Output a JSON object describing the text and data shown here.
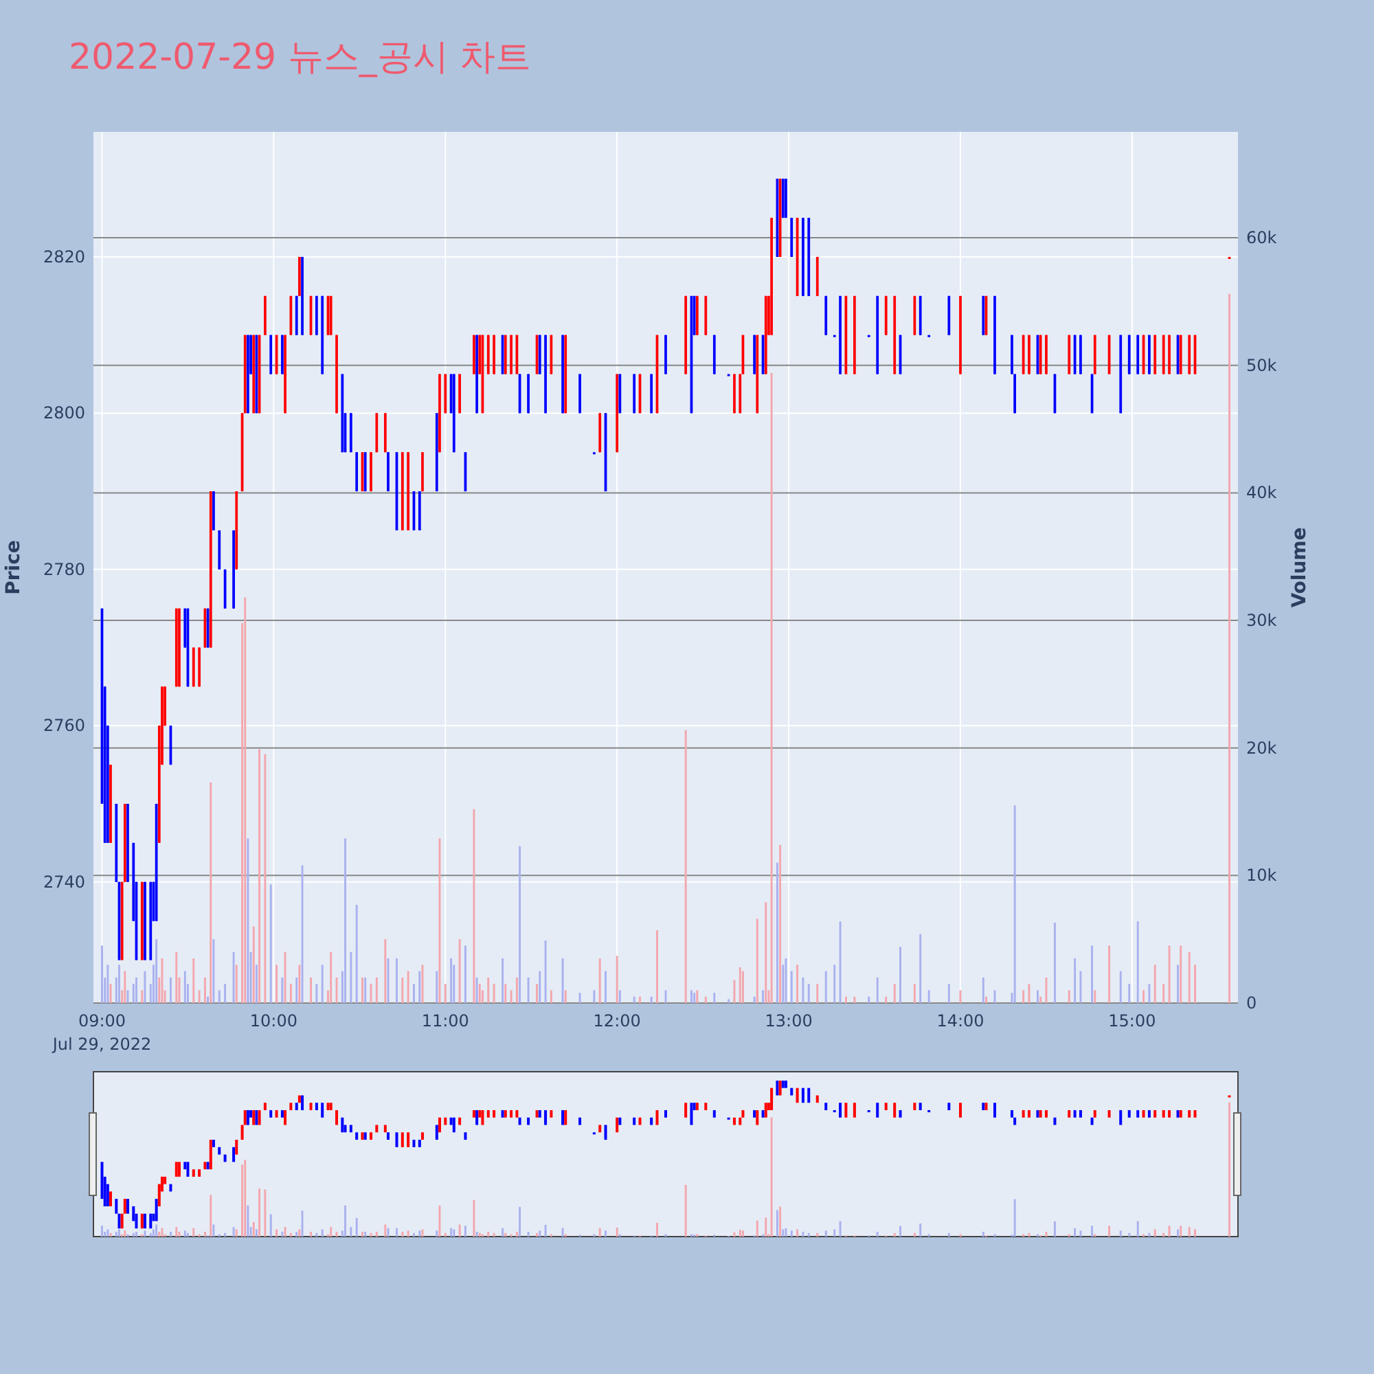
{
  "chart_data": {
    "type": "candlestick",
    "title": "2022-07-29 뉴스_공시 차트",
    "ylabel": "Price",
    "y2label": "Volume",
    "grid": true,
    "xlim": [
      "2022-07-29T08:57",
      "2022-07-29T15:37"
    ],
    "xticks": [
      {
        "value": "2022-07-29T09:00",
        "label": "09:00\nJul 29, 2022"
      },
      {
        "value": "2022-07-29T10:00",
        "label": "10:00"
      },
      {
        "value": "2022-07-29T11:00",
        "label": "11:00"
      },
      {
        "value": "2022-07-29T12:00",
        "label": "12:00"
      },
      {
        "value": "2022-07-29T13:00",
        "label": "13:00"
      },
      {
        "value": "2022-07-29T14:00",
        "label": "14:00"
      },
      {
        "value": "2022-07-29T15:00",
        "label": "15:00"
      }
    ],
    "ylim": [
      2724.5,
      2836
    ],
    "yticks": [
      2740,
      2760,
      2780,
      2800,
      2820
    ],
    "y2lim": [
      0,
      68300
    ],
    "y2ticks": [
      0,
      {
        "value": 10000,
        "label": "10k"
      },
      {
        "value": 20000,
        "label": "20k"
      },
      {
        "value": 30000,
        "label": "30k"
      },
      {
        "value": 40000,
        "label": "40k"
      },
      {
        "value": 50000,
        "label": "50k"
      },
      {
        "value": 60000,
        "label": "60k"
      }
    ],
    "x": [
      "2022-07-29T09:00",
      "2022-07-29T09:01",
      "2022-07-29T09:02",
      "2022-07-29T09:03",
      "2022-07-29T09:05",
      "2022-07-29T09:06",
      "2022-07-29T09:07",
      "2022-07-29T09:08",
      "2022-07-29T09:09",
      "2022-07-29T09:11",
      "2022-07-29T09:12",
      "2022-07-29T09:14",
      "2022-07-29T09:15",
      "2022-07-29T09:17",
      "2022-07-29T09:18",
      "2022-07-29T09:19",
      "2022-07-29T09:20",
      "2022-07-29T09:21",
      "2022-07-29T09:22",
      "2022-07-29T09:24",
      "2022-07-29T09:26",
      "2022-07-29T09:27",
      "2022-07-29T09:29",
      "2022-07-29T09:30",
      "2022-07-29T09:32",
      "2022-07-29T09:34",
      "2022-07-29T09:36",
      "2022-07-29T09:37",
      "2022-07-29T09:38",
      "2022-07-29T09:39",
      "2022-07-29T09:41",
      "2022-07-29T09:43",
      "2022-07-29T09:46",
      "2022-07-29T09:47",
      "2022-07-29T09:49",
      "2022-07-29T09:50",
      "2022-07-29T09:51",
      "2022-07-29T09:52",
      "2022-07-29T09:53",
      "2022-07-29T09:54",
      "2022-07-29T09:55",
      "2022-07-29T09:57",
      "2022-07-29T09:59",
      "2022-07-29T10:01",
      "2022-07-29T10:03",
      "2022-07-29T10:04",
      "2022-07-29T10:06",
      "2022-07-29T10:08",
      "2022-07-29T10:09",
      "2022-07-29T10:10",
      "2022-07-29T10:13",
      "2022-07-29T10:15",
      "2022-07-29T10:17",
      "2022-07-29T10:19",
      "2022-07-29T10:20",
      "2022-07-29T10:22",
      "2022-07-29T10:24",
      "2022-07-29T10:25",
      "2022-07-29T10:27",
      "2022-07-29T10:29",
      "2022-07-29T10:31",
      "2022-07-29T10:32",
      "2022-07-29T10:34",
      "2022-07-29T10:36",
      "2022-07-29T10:39",
      "2022-07-29T10:40",
      "2022-07-29T10:43",
      "2022-07-29T10:45",
      "2022-07-29T10:47",
      "2022-07-29T10:49",
      "2022-07-29T10:51",
      "2022-07-29T10:52",
      "2022-07-29T10:57",
      "2022-07-29T10:58",
      "2022-07-29T11:00",
      "2022-07-29T11:02",
      "2022-07-29T11:03",
      "2022-07-29T11:05",
      "2022-07-29T11:07",
      "2022-07-29T11:10",
      "2022-07-29T11:11",
      "2022-07-29T11:12",
      "2022-07-29T11:13",
      "2022-07-29T11:15",
      "2022-07-29T11:17",
      "2022-07-29T11:20",
      "2022-07-29T11:21",
      "2022-07-29T11:23",
      "2022-07-29T11:25",
      "2022-07-29T11:26",
      "2022-07-29T11:29",
      "2022-07-29T11:32",
      "2022-07-29T11:33",
      "2022-07-29T11:35",
      "2022-07-29T11:37",
      "2022-07-29T11:41",
      "2022-07-29T11:42",
      "2022-07-29T11:47",
      "2022-07-29T11:52",
      "2022-07-29T11:54",
      "2022-07-29T11:56",
      "2022-07-29T12:00",
      "2022-07-29T12:01",
      "2022-07-29T12:06",
      "2022-07-29T12:08",
      "2022-07-29T12:12",
      "2022-07-29T12:14",
      "2022-07-29T12:17",
      "2022-07-29T12:24",
      "2022-07-29T12:26",
      "2022-07-29T12:27",
      "2022-07-29T12:28",
      "2022-07-29T12:31",
      "2022-07-29T12:34",
      "2022-07-29T12:39",
      "2022-07-29T12:41",
      "2022-07-29T12:43",
      "2022-07-29T12:44",
      "2022-07-29T12:48",
      "2022-07-29T12:49",
      "2022-07-29T12:51",
      "2022-07-29T12:52",
      "2022-07-29T12:53",
      "2022-07-29T12:54",
      "2022-07-29T12:56",
      "2022-07-29T12:57",
      "2022-07-29T12:58",
      "2022-07-29T12:59",
      "2022-07-29T13:01",
      "2022-07-29T13:03",
      "2022-07-29T13:05",
      "2022-07-29T13:07",
      "2022-07-29T13:10",
      "2022-07-29T13:13",
      "2022-07-29T13:16",
      "2022-07-29T13:18",
      "2022-07-29T13:20",
      "2022-07-29T13:23",
      "2022-07-29T13:28",
      "2022-07-29T13:31",
      "2022-07-29T13:34",
      "2022-07-29T13:37",
      "2022-07-29T13:39",
      "2022-07-29T13:44",
      "2022-07-29T13:46",
      "2022-07-29T13:49",
      "2022-07-29T13:56",
      "2022-07-29T14:00",
      "2022-07-29T14:08",
      "2022-07-29T14:09",
      "2022-07-29T14:12",
      "2022-07-29T14:18",
      "2022-07-29T14:19",
      "2022-07-29T14:22",
      "2022-07-29T14:24",
      "2022-07-29T14:27",
      "2022-07-29T14:28",
      "2022-07-29T14:30",
      "2022-07-29T14:33",
      "2022-07-29T14:38",
      "2022-07-29T14:40",
      "2022-07-29T14:42",
      "2022-07-29T14:46",
      "2022-07-29T14:47",
      "2022-07-29T14:52",
      "2022-07-29T14:56",
      "2022-07-29T14:59",
      "2022-07-29T15:02",
      "2022-07-29T15:04",
      "2022-07-29T15:06",
      "2022-07-29T15:08",
      "2022-07-29T15:11",
      "2022-07-29T15:13",
      "2022-07-29T15:16",
      "2022-07-29T15:17",
      "2022-07-29T15:20",
      "2022-07-29T15:22",
      "2022-07-29T15:34"
    ],
    "series": [
      {
        "type": "candlestick",
        "ohlc": [
          [
            2775,
            2775,
            2750,
            2750
          ],
          [
            2765,
            2765,
            2745,
            2745
          ],
          [
            2760,
            2760,
            2745,
            2745
          ],
          [
            2745,
            2755,
            2745,
            2755
          ],
          [
            2750,
            2750,
            2740,
            2740
          ],
          [
            2740,
            2740,
            2730,
            2730
          ],
          [
            2730,
            2740,
            2730,
            2740
          ],
          [
            2740,
            2750,
            2740,
            2750
          ],
          [
            2750,
            2750,
            2740,
            2740
          ],
          [
            2745,
            2745,
            2735,
            2735
          ],
          [
            2740,
            2740,
            2730,
            2730
          ],
          [
            2730,
            2740,
            2730,
            2740
          ],
          [
            2740,
            2740,
            2730,
            2730
          ],
          [
            2740,
            2740,
            2730,
            2730
          ],
          [
            2740,
            2740,
            2735,
            2735
          ],
          [
            2750,
            2750,
            2735,
            2735
          ],
          [
            2745,
            2760,
            2745,
            2760
          ],
          [
            2755,
            2765,
            2755,
            2765
          ],
          [
            2760,
            2765,
            2760,
            2765
          ],
          [
            2760,
            2760,
            2755,
            2755
          ],
          [
            2765,
            2775,
            2765,
            2775
          ],
          [
            2765,
            2775,
            2765,
            2775
          ],
          [
            2775,
            2775,
            2770,
            2770
          ],
          [
            2775,
            2775,
            2765,
            2765
          ],
          [
            2765,
            2770,
            2765,
            2770
          ],
          [
            2765,
            2770,
            2765,
            2770
          ],
          [
            2770,
            2775,
            2770,
            2775
          ],
          [
            2775,
            2775,
            2770,
            2770
          ],
          [
            2770,
            2790,
            2770,
            2790
          ],
          [
            2790,
            2790,
            2785,
            2785
          ],
          [
            2785,
            2785,
            2780,
            2780
          ],
          [
            2780,
            2780,
            2775,
            2775
          ],
          [
            2785,
            2785,
            2775,
            2775
          ],
          [
            2780,
            2790,
            2780,
            2790
          ],
          [
            2790,
            2800,
            2790,
            2800
          ],
          [
            2800,
            2810,
            2800,
            2810
          ],
          [
            2810,
            2810,
            2800,
            2800
          ],
          [
            2810,
            2810,
            2805,
            2805
          ],
          [
            2800,
            2810,
            2800,
            2810
          ],
          [
            2810,
            2810,
            2800,
            2800
          ],
          [
            2800,
            2810,
            2800,
            2810
          ],
          [
            2810,
            2815,
            2810,
            2815
          ],
          [
            2810,
            2810,
            2805,
            2805
          ],
          [
            2805,
            2810,
            2805,
            2810
          ],
          [
            2810,
            2810,
            2805,
            2805
          ],
          [
            2800,
            2810,
            2800,
            2810
          ],
          [
            2810,
            2815,
            2810,
            2815
          ],
          [
            2815,
            2815,
            2810,
            2810
          ],
          [
            2815,
            2820,
            2815,
            2820
          ],
          [
            2820,
            2820,
            2810,
            2810
          ],
          [
            2810,
            2815,
            2810,
            2815
          ],
          [
            2815,
            2815,
            2810,
            2810
          ],
          [
            2815,
            2815,
            2805,
            2805
          ],
          [
            2810,
            2815,
            2810,
            2815
          ],
          [
            2810,
            2815,
            2810,
            2815
          ],
          [
            2800,
            2810,
            2800,
            2810
          ],
          [
            2805,
            2805,
            2795,
            2795
          ],
          [
            2800,
            2800,
            2795,
            2795
          ],
          [
            2800,
            2800,
            2795,
            2795
          ],
          [
            2795,
            2795,
            2790,
            2790
          ],
          [
            2790,
            2795,
            2790,
            2795
          ],
          [
            2795,
            2795,
            2790,
            2790
          ],
          [
            2790,
            2795,
            2790,
            2795
          ],
          [
            2795,
            2800,
            2795,
            2800
          ],
          [
            2795,
            2800,
            2795,
            2800
          ],
          [
            2795,
            2795,
            2790,
            2790
          ],
          [
            2795,
            2795,
            2785,
            2785
          ],
          [
            2785,
            2795,
            2785,
            2795
          ],
          [
            2785,
            2795,
            2785,
            2795
          ],
          [
            2790,
            2790,
            2785,
            2785
          ],
          [
            2790,
            2790,
            2785,
            2785
          ],
          [
            2790,
            2795,
            2790,
            2795
          ],
          [
            2800,
            2800,
            2790,
            2790
          ],
          [
            2795,
            2805,
            2795,
            2805
          ],
          [
            2800,
            2805,
            2800,
            2805
          ],
          [
            2805,
            2805,
            2800,
            2800
          ],
          [
            2805,
            2805,
            2795,
            2795
          ],
          [
            2800,
            2805,
            2800,
            2805
          ],
          [
            2795,
            2795,
            2790,
            2790
          ],
          [
            2805,
            2810,
            2805,
            2810
          ],
          [
            2810,
            2810,
            2800,
            2800
          ],
          [
            2805,
            2810,
            2805,
            2810
          ],
          [
            2800,
            2810,
            2800,
            2810
          ],
          [
            2805,
            2810,
            2805,
            2810
          ],
          [
            2805,
            2810,
            2805,
            2810
          ],
          [
            2810,
            2810,
            2805,
            2805
          ],
          [
            2805,
            2810,
            2805,
            2810
          ],
          [
            2805,
            2810,
            2805,
            2810
          ],
          [
            2805,
            2810,
            2805,
            2810
          ],
          [
            2805,
            2805,
            2800,
            2800
          ],
          [
            2805,
            2805,
            2800,
            2800
          ],
          [
            2805,
            2810,
            2805,
            2810
          ],
          [
            2810,
            2810,
            2805,
            2805
          ],
          [
            2810,
            2810,
            2800,
            2800
          ],
          [
            2805,
            2810,
            2805,
            2810
          ],
          [
            2810,
            2810,
            2800,
            2800
          ],
          [
            2800,
            2810,
            2800,
            2810
          ],
          [
            2805,
            2805,
            2800,
            2800
          ],
          [
            2795,
            2795,
            2795,
            2795
          ],
          [
            2795,
            2800,
            2795,
            2800
          ],
          [
            2800,
            2800,
            2790,
            2790
          ],
          [
            2795,
            2805,
            2795,
            2805
          ],
          [
            2805,
            2805,
            2800,
            2800
          ],
          [
            2805,
            2805,
            2800,
            2800
          ],
          [
            2800,
            2805,
            2800,
            2805
          ],
          [
            2805,
            2805,
            2800,
            2800
          ],
          [
            2800,
            2810,
            2800,
            2810
          ],
          [
            2810,
            2810,
            2805,
            2805
          ],
          [
            2805,
            2815,
            2805,
            2815
          ],
          [
            2815,
            2815,
            2800,
            2800
          ],
          [
            2815,
            2815,
            2810,
            2810
          ],
          [
            2810,
            2815,
            2810,
            2815
          ],
          [
            2810,
            2815,
            2810,
            2815
          ],
          [
            2810,
            2810,
            2805,
            2805
          ],
          [
            2805,
            2805,
            2805,
            2805
          ],
          [
            2800,
            2805,
            2800,
            2805
          ],
          [
            2800,
            2805,
            2800,
            2805
          ],
          [
            2805,
            2810,
            2805,
            2810
          ],
          [
            2810,
            2810,
            2805,
            2805
          ],
          [
            2800,
            2810,
            2800,
            2810
          ],
          [
            2810,
            2810,
            2805,
            2805
          ],
          [
            2805,
            2815,
            2805,
            2815
          ],
          [
            2810,
            2815,
            2810,
            2815
          ],
          [
            2810,
            2825,
            2810,
            2825
          ],
          [
            2830,
            2830,
            2820,
            2820
          ],
          [
            2820,
            2830,
            2820,
            2830
          ],
          [
            2830,
            2830,
            2825,
            2825
          ],
          [
            2830,
            2830,
            2825,
            2825
          ],
          [
            2825,
            2825,
            2820,
            2820
          ],
          [
            2815,
            2825,
            2815,
            2825
          ],
          [
            2825,
            2825,
            2815,
            2815
          ],
          [
            2825,
            2825,
            2815,
            2815
          ],
          [
            2815,
            2820,
            2815,
            2820
          ],
          [
            2815,
            2815,
            2810,
            2810
          ],
          [
            2810,
            2810,
            2810,
            2810
          ],
          [
            2815,
            2815,
            2805,
            2805
          ],
          [
            2805,
            2815,
            2805,
            2815
          ],
          [
            2805,
            2815,
            2805,
            2815
          ],
          [
            2810,
            2810,
            2810,
            2810
          ],
          [
            2815,
            2815,
            2805,
            2805
          ],
          [
            2810,
            2815,
            2810,
            2815
          ],
          [
            2805,
            2815,
            2805,
            2815
          ],
          [
            2810,
            2810,
            2805,
            2805
          ],
          [
            2810,
            2815,
            2810,
            2815
          ],
          [
            2815,
            2815,
            2810,
            2810
          ],
          [
            2810,
            2810,
            2810,
            2810
          ],
          [
            2815,
            2815,
            2810,
            2810
          ],
          [
            2805,
            2815,
            2805,
            2815
          ],
          [
            2815,
            2815,
            2810,
            2810
          ],
          [
            2810,
            2815,
            2810,
            2815
          ],
          [
            2815,
            2815,
            2805,
            2805
          ],
          [
            2810,
            2810,
            2805,
            2805
          ],
          [
            2805,
            2805,
            2800,
            2800
          ],
          [
            2805,
            2810,
            2805,
            2810
          ],
          [
            2805,
            2810,
            2805,
            2810
          ],
          [
            2810,
            2810,
            2805,
            2805
          ],
          [
            2805,
            2810,
            2805,
            2810
          ],
          [
            2805,
            2810,
            2805,
            2810
          ],
          [
            2805,
            2805,
            2800,
            2800
          ],
          [
            2805,
            2810,
            2805,
            2810
          ],
          [
            2810,
            2810,
            2805,
            2805
          ],
          [
            2810,
            2810,
            2805,
            2805
          ],
          [
            2805,
            2805,
            2800,
            2800
          ],
          [
            2805,
            2810,
            2805,
            2810
          ],
          [
            2805,
            2810,
            2805,
            2810
          ],
          [
            2810,
            2810,
            2800,
            2800
          ],
          [
            2810,
            2810,
            2805,
            2805
          ],
          [
            2810,
            2810,
            2805,
            2805
          ],
          [
            2805,
            2810,
            2805,
            2810
          ],
          [
            2810,
            2810,
            2805,
            2805
          ],
          [
            2805,
            2810,
            2805,
            2810
          ],
          [
            2805,
            2810,
            2805,
            2810
          ],
          [
            2805,
            2810,
            2805,
            2810
          ],
          [
            2810,
            2810,
            2805,
            2805
          ],
          [
            2805,
            2810,
            2805,
            2810
          ],
          [
            2805,
            2810,
            2805,
            2810
          ],
          [
            2805,
            2810,
            2805,
            2810
          ],
          [
            2820,
            2820,
            2820,
            2820
          ]
        ],
        "colors": [
          "#0000ff",
          "#0000ff",
          "#0000ff",
          "#ff0000",
          "#0000ff",
          "#0000ff",
          "#ff0000",
          "#ff0000",
          "#0000ff",
          "#0000ff",
          "#0000ff",
          "#ff0000",
          "#0000ff",
          "#0000ff",
          "#0000ff",
          "#0000ff",
          "#ff0000",
          "#ff0000",
          "#ff0000",
          "#0000ff",
          "#ff0000",
          "#ff0000",
          "#0000ff",
          "#0000ff",
          "#ff0000",
          "#ff0000",
          "#ff0000",
          "#0000ff",
          "#ff0000",
          "#0000ff",
          "#0000ff",
          "#0000ff",
          "#0000ff",
          "#ff0000",
          "#ff0000",
          "#ff0000",
          "#0000ff",
          "#0000ff",
          "#ff0000",
          "#0000ff",
          "#ff0000",
          "#ff0000",
          "#0000ff",
          "#ff0000",
          "#0000ff",
          "#ff0000",
          "#ff0000",
          "#0000ff",
          "#ff0000",
          "#0000ff",
          "#ff0000",
          "#0000ff",
          "#0000ff",
          "#ff0000",
          "#ff0000",
          "#ff0000",
          "#0000ff",
          "#0000ff",
          "#0000ff",
          "#0000ff",
          "#ff0000",
          "#0000ff",
          "#ff0000",
          "#ff0000",
          "#ff0000",
          "#0000ff",
          "#0000ff",
          "#ff0000",
          "#ff0000",
          "#0000ff",
          "#0000ff",
          "#ff0000",
          "#0000ff",
          "#ff0000",
          "#ff0000",
          "#0000ff",
          "#0000ff",
          "#ff0000",
          "#0000ff",
          "#ff0000",
          "#0000ff",
          "#ff0000",
          "#ff0000",
          "#ff0000",
          "#ff0000",
          "#0000ff",
          "#ff0000",
          "#ff0000",
          "#ff0000",
          "#0000ff",
          "#0000ff",
          "#ff0000",
          "#0000ff",
          "#0000ff",
          "#ff0000",
          "#0000ff",
          "#ff0000",
          "#0000ff",
          "#0000ff",
          "#ff0000",
          "#0000ff",
          "#ff0000",
          "#0000ff",
          "#0000ff",
          "#ff0000",
          "#0000ff",
          "#ff0000",
          "#0000ff",
          "#ff0000",
          "#0000ff",
          "#0000ff",
          "#ff0000",
          "#ff0000",
          "#0000ff",
          "#0000ff",
          "#ff0000",
          "#ff0000",
          "#ff0000",
          "#0000ff",
          "#ff0000",
          "#0000ff",
          "#ff0000",
          "#ff0000",
          "#ff0000",
          "#0000ff",
          "#ff0000",
          "#0000ff",
          "#0000ff",
          "#0000ff",
          "#ff0000",
          "#0000ff",
          "#0000ff",
          "#ff0000",
          "#0000ff",
          "#0000ff",
          "#0000ff",
          "#ff0000",
          "#ff0000",
          "#0000ff",
          "#0000ff",
          "#ff0000",
          "#ff0000",
          "#0000ff",
          "#ff0000",
          "#0000ff",
          "#0000ff",
          "#0000ff",
          "#ff0000",
          "#0000ff",
          "#ff0000",
          "#0000ff",
          "#0000ff",
          "#0000ff",
          "#ff0000",
          "#ff0000",
          "#0000ff",
          "#ff0000",
          "#ff0000",
          "#0000ff",
          "#ff0000",
          "#0000ff",
          "#0000ff",
          "#0000ff",
          "#ff0000",
          "#ff0000",
          "#0000ff",
          "#0000ff",
          "#0000ff",
          "#ff0000",
          "#0000ff",
          "#ff0000",
          "#ff0000",
          "#ff0000",
          "#0000ff",
          "#ff0000",
          "#ff0000",
          "#ff0000",
          "#ff0000"
        ]
      },
      {
        "type": "bar",
        "axis": "y2",
        "values": [
          4500,
          2000,
          3000,
          1500,
          2000,
          3000,
          1000,
          2500,
          1000,
          1500,
          2000,
          1000,
          2500,
          1500,
          3000,
          5000,
          2000,
          3500,
          1000,
          2000,
          4000,
          2000,
          2500,
          1500,
          3500,
          1000,
          2000,
          500,
          17300,
          5000,
          1000,
          1500,
          4000,
          3000,
          29800,
          31800,
          12900,
          4000,
          6000,
          3000,
          19900,
          19500,
          9300,
          3000,
          2000,
          4000,
          1500,
          2000,
          3000,
          10800,
          2000,
          1500,
          3000,
          1000,
          4000,
          2000,
          2500,
          12900,
          4000,
          7700,
          2000,
          2000,
          1500,
          2000,
          5000,
          3500,
          3500,
          2000,
          2500,
          1500,
          2500,
          3000,
          2500,
          12900,
          1500,
          3500,
          3000,
          5000,
          4500,
          15200,
          2000,
          1500,
          1000,
          2000,
          1500,
          3500,
          1500,
          1000,
          2000,
          12300,
          2000,
          1500,
          2500,
          4900,
          1000,
          3500,
          1000,
          800,
          1000,
          3500,
          2500,
          3700,
          1000,
          500,
          500,
          500,
          5700,
          1000,
          21400,
          1000,
          800,
          1000,
          500,
          800,
          300,
          1800,
          2800,
          2500,
          500,
          6600,
          1000,
          7900,
          1000,
          49400,
          11000,
          12400,
          3000,
          3500,
          2500,
          3000,
          2000,
          1500,
          1500,
          2500,
          3000,
          6400,
          500,
          500,
          500,
          2000,
          500,
          1500,
          4400,
          1500,
          5400,
          1000,
          1500,
          1000,
          2000,
          500,
          1000,
          800,
          15500,
          1000,
          1500,
          1000,
          500,
          2000,
          6300,
          1000,
          3500,
          2500,
          4500,
          1000,
          4500,
          2500,
          1500,
          6400,
          1000,
          1500,
          3000,
          1500,
          4500,
          3000,
          4500,
          4000,
          3000,
          55600
        ],
        "colors": [
          "#a9b1ef",
          "#a9b1ef",
          "#a9b1ef",
          "#f4a6ad",
          "#a9b1ef",
          "#a9b1ef",
          "#f4a6ad",
          "#f4a6ad",
          "#a9b1ef",
          "#a9b1ef",
          "#a9b1ef",
          "#f4a6ad",
          "#a9b1ef",
          "#a9b1ef",
          "#a9b1ef",
          "#a9b1ef",
          "#f4a6ad",
          "#f4a6ad",
          "#f4a6ad",
          "#a9b1ef",
          "#f4a6ad",
          "#f4a6ad",
          "#a9b1ef",
          "#a9b1ef",
          "#f4a6ad",
          "#f4a6ad",
          "#f4a6ad",
          "#a9b1ef",
          "#f4a6ad",
          "#a9b1ef",
          "#a9b1ef",
          "#a9b1ef",
          "#a9b1ef",
          "#f4a6ad",
          "#f4a6ad",
          "#f4a6ad",
          "#a9b1ef",
          "#a9b1ef",
          "#f4a6ad",
          "#a9b1ef",
          "#f4a6ad",
          "#f4a6ad",
          "#a9b1ef",
          "#f4a6ad",
          "#a9b1ef",
          "#f4a6ad",
          "#f4a6ad",
          "#a9b1ef",
          "#f4a6ad",
          "#a9b1ef",
          "#f4a6ad",
          "#a9b1ef",
          "#a9b1ef",
          "#f4a6ad",
          "#f4a6ad",
          "#f4a6ad",
          "#a9b1ef",
          "#a9b1ef",
          "#a9b1ef",
          "#a9b1ef",
          "#f4a6ad",
          "#a9b1ef",
          "#f4a6ad",
          "#f4a6ad",
          "#f4a6ad",
          "#a9b1ef",
          "#a9b1ef",
          "#f4a6ad",
          "#f4a6ad",
          "#a9b1ef",
          "#a9b1ef",
          "#f4a6ad",
          "#a9b1ef",
          "#f4a6ad",
          "#f4a6ad",
          "#a9b1ef",
          "#a9b1ef",
          "#f4a6ad",
          "#a9b1ef",
          "#f4a6ad",
          "#a9b1ef",
          "#f4a6ad",
          "#f4a6ad",
          "#f4a6ad",
          "#f4a6ad",
          "#a9b1ef",
          "#f4a6ad",
          "#f4a6ad",
          "#f4a6ad",
          "#a9b1ef",
          "#a9b1ef",
          "#f4a6ad",
          "#a9b1ef",
          "#a9b1ef",
          "#f4a6ad",
          "#a9b1ef",
          "#f4a6ad",
          "#a9b1ef",
          "#a9b1ef",
          "#f4a6ad",
          "#a9b1ef",
          "#f4a6ad",
          "#a9b1ef",
          "#a9b1ef",
          "#f4a6ad",
          "#a9b1ef",
          "#f4a6ad",
          "#a9b1ef",
          "#f4a6ad",
          "#a9b1ef",
          "#a9b1ef",
          "#f4a6ad",
          "#f4a6ad",
          "#a9b1ef",
          "#a9b1ef",
          "#f4a6ad",
          "#f4a6ad",
          "#f4a6ad",
          "#a9b1ef",
          "#f4a6ad",
          "#a9b1ef",
          "#f4a6ad",
          "#f4a6ad",
          "#f4a6ad",
          "#a9b1ef",
          "#f4a6ad",
          "#a9b1ef",
          "#a9b1ef",
          "#a9b1ef",
          "#f4a6ad",
          "#a9b1ef",
          "#a9b1ef",
          "#f4a6ad",
          "#a9b1ef",
          "#a9b1ef",
          "#a9b1ef",
          "#f4a6ad",
          "#f4a6ad",
          "#a9b1ef",
          "#a9b1ef",
          "#f4a6ad",
          "#f4a6ad",
          "#a9b1ef",
          "#f4a6ad",
          "#a9b1ef",
          "#a9b1ef",
          "#a9b1ef",
          "#f4a6ad",
          "#a9b1ef",
          "#f4a6ad",
          "#a9b1ef",
          "#a9b1ef",
          "#a9b1ef",
          "#f4a6ad",
          "#f4a6ad",
          "#a9b1ef",
          "#f4a6ad",
          "#f4a6ad",
          "#a9b1ef",
          "#f4a6ad",
          "#a9b1ef",
          "#a9b1ef",
          "#a9b1ef",
          "#f4a6ad",
          "#f4a6ad",
          "#a9b1ef",
          "#a9b1ef",
          "#a9b1ef",
          "#f4a6ad",
          "#a9b1ef",
          "#f4a6ad",
          "#f4a6ad",
          "#f4a6ad",
          "#a9b1ef",
          "#f4a6ad",
          "#f4a6ad",
          "#f4a6ad",
          "#f4a6ad"
        ]
      }
    ]
  }
}
